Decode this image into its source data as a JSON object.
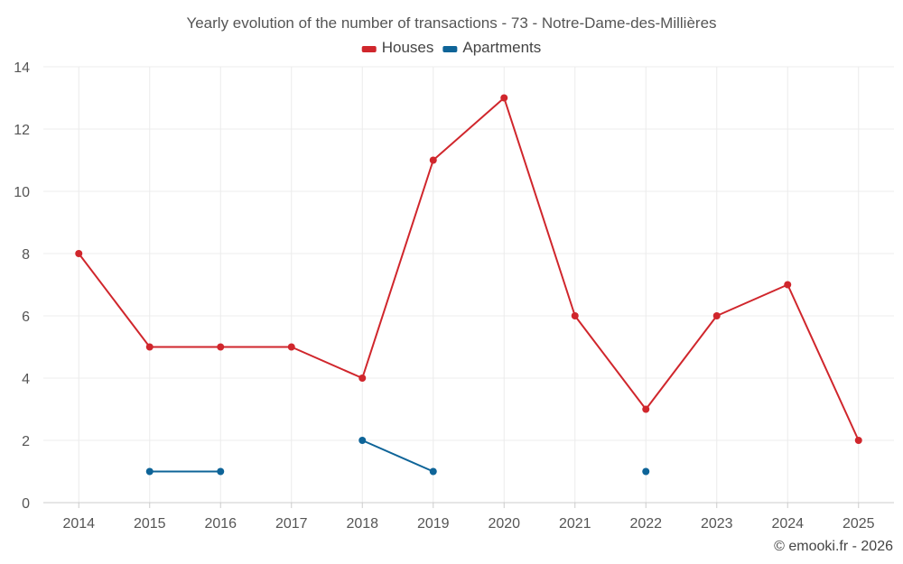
{
  "chart_data": {
    "type": "line",
    "title": "Yearly evolution of the number of transactions - 73 - Notre-Dame-des-Millières",
    "categories": [
      "2014",
      "2015",
      "2016",
      "2017",
      "2018",
      "2019",
      "2020",
      "2021",
      "2022",
      "2023",
      "2024",
      "2025"
    ],
    "ylim": [
      0,
      14
    ],
    "yticks": [
      0,
      2,
      4,
      6,
      8,
      10,
      12,
      14
    ],
    "grid": true,
    "legend_position": "top-center",
    "series": [
      {
        "name": "Houses",
        "color": "#d0262c",
        "values": [
          8,
          5,
          5,
          5,
          4,
          11,
          13,
          6,
          3,
          6,
          7,
          2
        ]
      },
      {
        "name": "Apartments",
        "color": "#0e6498",
        "values": [
          null,
          1,
          1,
          null,
          2,
          1,
          null,
          null,
          1,
          null,
          null,
          null
        ]
      }
    ]
  },
  "credit": "© emooki.fr - 2026"
}
